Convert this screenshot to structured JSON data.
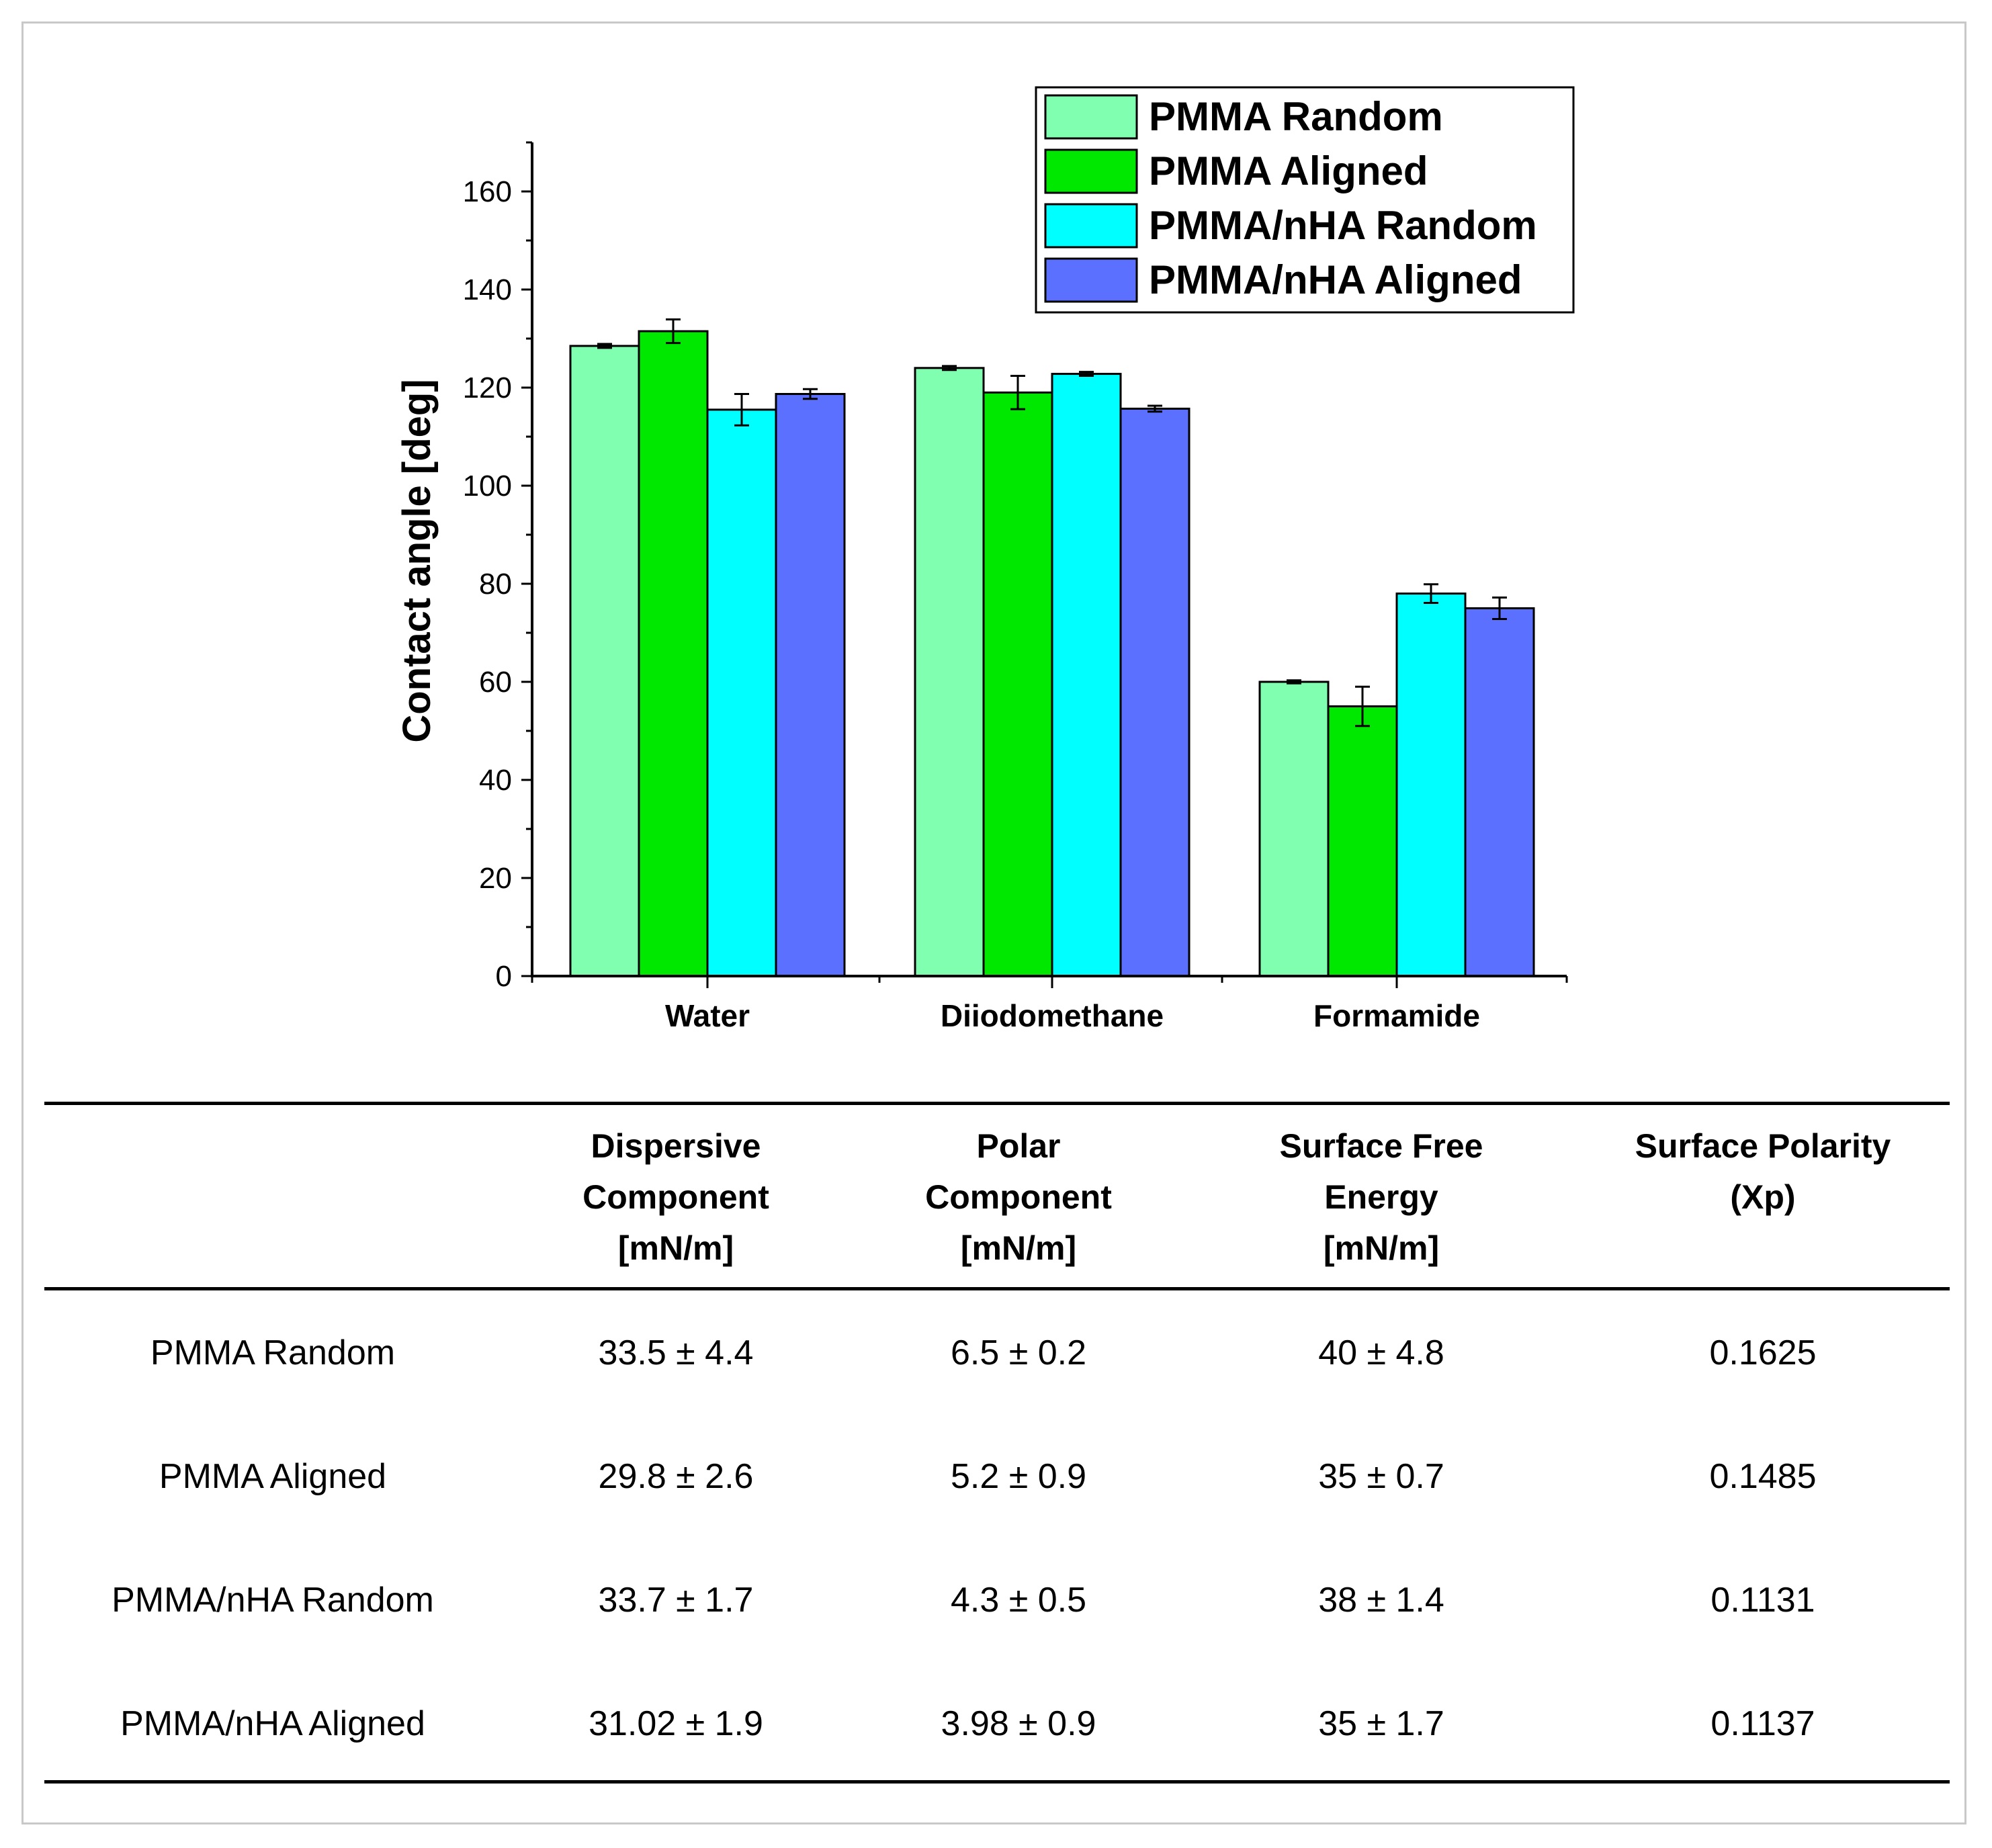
{
  "chart_data": {
    "type": "bar",
    "ylabel": "Contact angle [deg]",
    "xlabel": "",
    "ylim": [
      0,
      170
    ],
    "yticks": [
      0,
      20,
      40,
      60,
      80,
      100,
      120,
      140,
      160
    ],
    "categories": [
      "Water",
      "Diiodomethane",
      "Formamide"
    ],
    "series": [
      {
        "name": "PMMA Random",
        "color": "#80FFB0",
        "values": [
          128.5,
          124.0,
          60.0
        ],
        "errors": [
          0.4,
          0.4,
          0.3
        ]
      },
      {
        "name": "PMMA Aligned",
        "color": "#00E800",
        "values": [
          131.5,
          119.0,
          55.0
        ],
        "errors": [
          2.4,
          3.4,
          4.0
        ]
      },
      {
        "name": "PMMA/nHA Random",
        "color": "#00FFFF",
        "values": [
          115.5,
          122.8,
          78.0
        ],
        "errors": [
          3.2,
          0.4,
          1.9
        ]
      },
      {
        "name": "PMMA/nHA Aligned",
        "color": "#5C70FF",
        "values": [
          118.7,
          115.7,
          75.0
        ],
        "errors": [
          1.0,
          0.6,
          2.2
        ]
      }
    ],
    "legend_position": "top-right"
  },
  "table": {
    "headers": [
      "",
      [
        "Dispersive",
        "Component",
        "[mN/m]"
      ],
      [
        "Polar",
        "Component",
        "[mN/m]"
      ],
      [
        "Surface Free",
        "Energy",
        "[mN/m]"
      ],
      [
        "Surface Polarity",
        "(Xp)"
      ]
    ],
    "rows": [
      [
        "PMMA Random",
        "33.5 ± 4.4",
        "6.5 ± 0.2",
        "40 ± 4.8",
        "0.1625"
      ],
      [
        "PMMA Aligned",
        "29.8 ± 2.6",
        "5.2 ± 0.9",
        "35 ± 0.7",
        "0.1485"
      ],
      [
        "PMMA/nHA Random",
        "33.7 ± 1.7",
        "4.3 ± 0.5",
        "38 ±  1.4",
        "0.1131"
      ],
      [
        "PMMA/nHA Aligned",
        "31.02 ± 1.9",
        "3.98 ± 0.9",
        "35 ±  1.7",
        "0.1137"
      ]
    ]
  }
}
